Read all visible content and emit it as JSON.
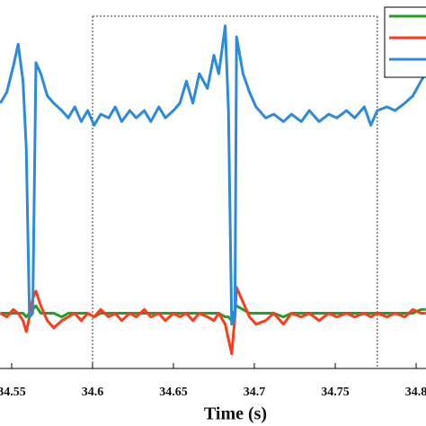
{
  "chart_data": {
    "type": "line",
    "xlabel": "Time (s)",
    "x": [
      34.543,
      34.547,
      34.551,
      34.554,
      34.557,
      34.559,
      34.561,
      34.563,
      34.565,
      34.568,
      34.572,
      34.576,
      34.581,
      34.585,
      34.589,
      34.593,
      34.597,
      34.601,
      34.605,
      34.61,
      34.614,
      34.618,
      34.623,
      34.627,
      34.632,
      34.636,
      34.641,
      34.645,
      34.65,
      34.654,
      34.658,
      34.662,
      34.666,
      34.671,
      34.675,
      34.678,
      34.682,
      34.684,
      34.686,
      34.688,
      34.689,
      34.693,
      34.697,
      34.701,
      34.707,
      34.712,
      34.718,
      34.723,
      34.729,
      34.734,
      34.74,
      34.746,
      34.751,
      34.757,
      34.762,
      34.768,
      34.772,
      34.776,
      34.782,
      34.787,
      34.793,
      34.798,
      34.803,
      34.806
    ],
    "series": [
      {
        "color": "#22a020",
        "values": [
          0.15,
          0.15,
          0.15,
          0.15,
          0.15,
          0.14,
          0.15,
          0.16,
          0.17,
          0.15,
          0.15,
          0.15,
          0.14,
          0.15,
          0.15,
          0.15,
          0.15,
          0.14,
          0.15,
          0.15,
          0.15,
          0.15,
          0.15,
          0.15,
          0.15,
          0.15,
          0.15,
          0.15,
          0.15,
          0.15,
          0.15,
          0.15,
          0.15,
          0.15,
          0.15,
          0.15,
          0.14,
          0.14,
          0.13,
          0.16,
          0.17,
          0.16,
          0.15,
          0.15,
          0.15,
          0.15,
          0.14,
          0.15,
          0.15,
          0.15,
          0.15,
          0.15,
          0.15,
          0.15,
          0.15,
          0.15,
          0.15,
          0.15,
          0.15,
          0.15,
          0.15,
          0.15,
          0.16,
          0.16
        ]
      },
      {
        "color": "#ff3a1a",
        "values": [
          0.15,
          0.14,
          0.16,
          0.15,
          0.13,
          0.1,
          0.14,
          0.19,
          0.21,
          0.17,
          0.13,
          0.11,
          0.13,
          0.14,
          0.15,
          0.13,
          0.15,
          0.14,
          0.16,
          0.14,
          0.15,
          0.13,
          0.15,
          0.14,
          0.16,
          0.14,
          0.15,
          0.13,
          0.15,
          0.14,
          0.15,
          0.13,
          0.15,
          0.14,
          0.13,
          0.15,
          0.12,
          0.08,
          0.04,
          0.14,
          0.22,
          0.18,
          0.14,
          0.12,
          0.13,
          0.15,
          0.12,
          0.15,
          0.14,
          0.15,
          0.13,
          0.15,
          0.14,
          0.15,
          0.14,
          0.15,
          0.14,
          0.15,
          0.14,
          0.15,
          0.14,
          0.16,
          0.15,
          0.15
        ]
      },
      {
        "color": "#2b8ae0",
        "values": [
          0.72,
          0.75,
          0.82,
          0.88,
          0.78,
          0.6,
          0.14,
          0.15,
          0.83,
          0.8,
          0.74,
          0.72,
          0.7,
          0.68,
          0.71,
          0.67,
          0.7,
          0.66,
          0.69,
          0.68,
          0.71,
          0.67,
          0.7,
          0.68,
          0.7,
          0.67,
          0.71,
          0.68,
          0.7,
          0.72,
          0.78,
          0.72,
          0.8,
          0.76,
          0.85,
          0.8,
          0.93,
          0.7,
          0.12,
          0.14,
          0.9,
          0.8,
          0.75,
          0.71,
          0.68,
          0.69,
          0.67,
          0.69,
          0.67,
          0.7,
          0.67,
          0.69,
          0.68,
          0.7,
          0.68,
          0.71,
          0.66,
          0.7,
          0.71,
          0.7,
          0.72,
          0.74,
          0.78,
          0.8
        ]
      }
    ],
    "xlim": [
      34.5428,
      34.8061
    ],
    "ylim": [
      0,
      1
    ],
    "xticks": [
      34.55,
      34.6,
      34.65,
      34.7,
      34.75,
      34.8
    ],
    "highlight_window": [
      34.6,
      34.776
    ]
  }
}
